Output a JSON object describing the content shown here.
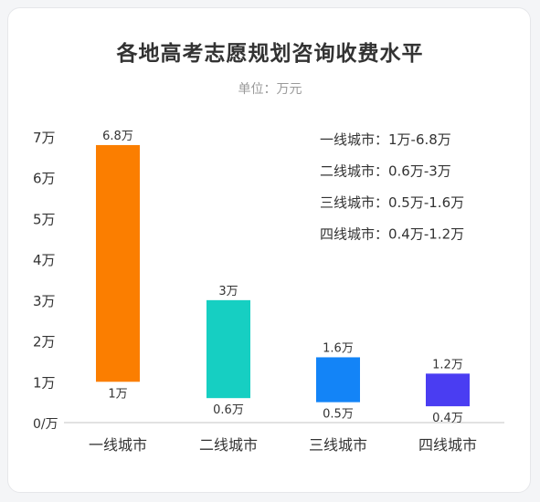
{
  "chart_data": {
    "type": "bar",
    "title": "各地高考志愿规划咨询收费水平",
    "subtitle": "单位：万元",
    "categories": [
      "一线城市",
      "二线城市",
      "三线城市",
      "四线城市"
    ],
    "ranges": [
      {
        "low": 1,
        "high": 6.8,
        "low_label": "1万",
        "high_label": "6.8万",
        "color": "#fb7e00"
      },
      {
        "low": 0.6,
        "high": 3,
        "low_label": "0.6万",
        "high_label": "3万",
        "color": "#16cfc2"
      },
      {
        "low": 0.5,
        "high": 1.6,
        "low_label": "0.5万",
        "high_label": "1.6万",
        "color": "#1384f7"
      },
      {
        "low": 0.4,
        "high": 1.2,
        "low_label": "0.4万",
        "high_label": "1.2万",
        "color": "#4a3df2"
      }
    ],
    "y_ticks": [
      {
        "value": 0,
        "label": "0/万"
      },
      {
        "value": 1,
        "label": "1万"
      },
      {
        "value": 2,
        "label": "2万"
      },
      {
        "value": 3,
        "label": "3万"
      },
      {
        "value": 4,
        "label": "4万"
      },
      {
        "value": 5,
        "label": "5万"
      },
      {
        "value": 6,
        "label": "6万"
      },
      {
        "value": 7,
        "label": "7万"
      }
    ],
    "ylim": [
      0,
      7
    ],
    "grid": false,
    "legend_position": "top-right",
    "legend": [
      "一线城市：1万-6.8万",
      "二线城市：0.6万-3万",
      "三线城市：0.5万-1.6万",
      "四线城市：0.4万-1.2万"
    ]
  }
}
